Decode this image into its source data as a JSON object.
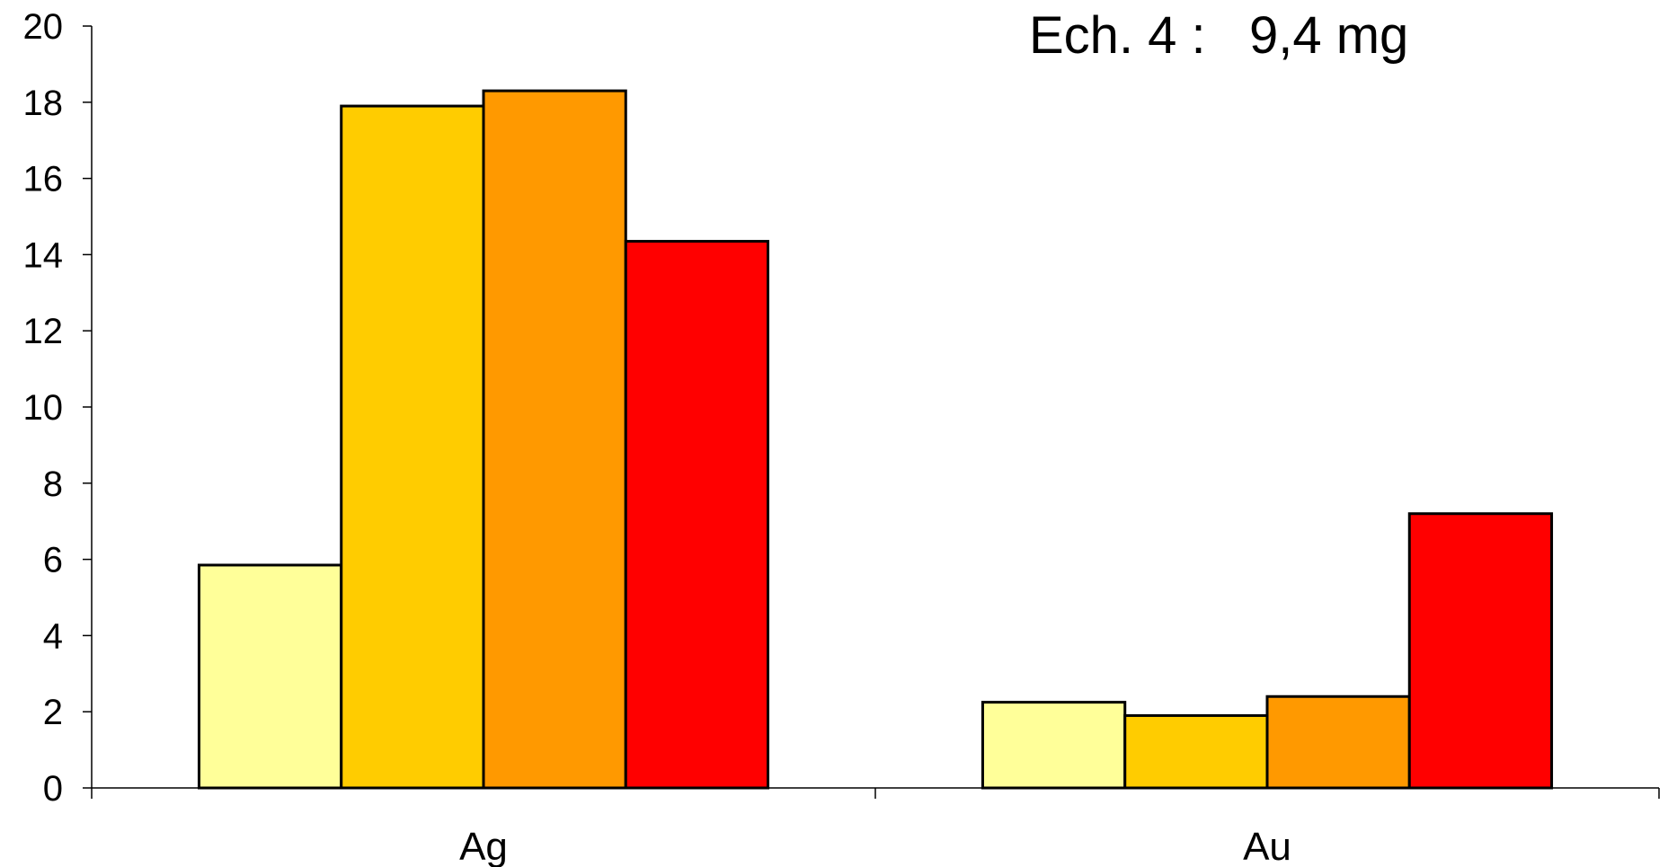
{
  "chart_data": {
    "type": "bar",
    "title": "Ech. 4 :   9,4 mg",
    "categories": [
      "Ag",
      "Au"
    ],
    "series": [
      {
        "values": [
          5.85,
          2.25
        ],
        "color": "#ffff99"
      },
      {
        "values": [
          17.9,
          1.9
        ],
        "color": "#ffcc00"
      },
      {
        "values": [
          18.3,
          2.4
        ],
        "color": "#ff9900"
      },
      {
        "values": [
          14.35,
          7.2
        ],
        "color": "#ff0000"
      }
    ],
    "ylim": [
      0,
      20
    ],
    "yticks": [
      "0",
      "2",
      "4",
      "6",
      "8",
      "10",
      "12",
      "14",
      "16",
      "18",
      "20"
    ],
    "xlabel": "",
    "ylabel": "",
    "grid": false,
    "legend": "none"
  }
}
